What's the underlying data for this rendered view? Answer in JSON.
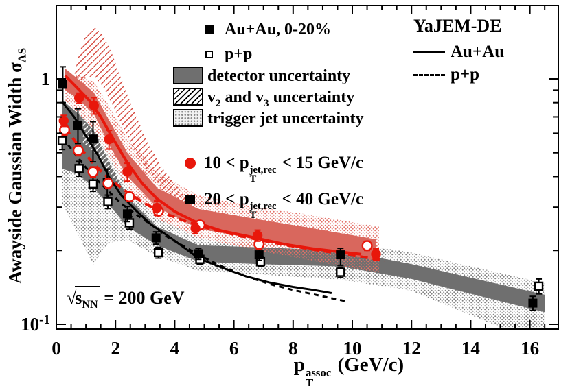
{
  "labels": {
    "y_axis": {
      "text": "Awayside Gaussian Width ",
      "sigma": "σ",
      "sigma_sub": "AS"
    },
    "x_axis": {
      "p": "p",
      "sub": "T",
      "sup": "assoc",
      "units": " (GeV/c)"
    },
    "annotation": {
      "sqrt": "√",
      "s": "s",
      "sub": "NN",
      "eq": " = 200 GeV"
    }
  },
  "legend_data": {
    "items": [
      {
        "marker": "square-filled",
        "label": "Au+Au, 0-20%"
      },
      {
        "marker": "square-open",
        "label": "p+p"
      },
      {
        "marker": "box-gray",
        "label": "detector uncertainty"
      },
      {
        "marker": "box-hatch",
        "label_pre": "v",
        "label_sub1": "2",
        "label_mid": " and v",
        "label_sub2": "3",
        "label_post": " uncertainty"
      },
      {
        "marker": "box-dots",
        "label": "trigger jet uncertainty"
      }
    ]
  },
  "legend_jet": {
    "items": [
      {
        "marker": "red-circle",
        "pre": "10 < p",
        "sub": "T",
        "sup": "jet,rec",
        "post": " < 15 GeV/c"
      },
      {
        "marker": "black-square",
        "pre": "20 < p",
        "sub": "T",
        "sup": "jet,rec",
        "post": " < 40 GeV/c"
      }
    ]
  },
  "legend_model": {
    "title": "YaJEM-DE",
    "items": [
      {
        "line": "solid",
        "label": "Au+Au"
      },
      {
        "line": "dashed",
        "label": "p+p"
      }
    ]
  },
  "chart_data": {
    "type": "scatter",
    "title": "Awayside Gaussian Width vs associated pT",
    "x_axis": {
      "label": "pT assoc (GeV/c)",
      "min": 0,
      "max": 16.96,
      "tick_labels": [
        0,
        2,
        4,
        6,
        8,
        10,
        12,
        14,
        16
      ],
      "minor_step": 0.5
    },
    "y_axis": {
      "label": "Awayside Gaussian Width sigma_AS",
      "scale": "log",
      "min": 0.0956,
      "max": 1.99,
      "tick_labels": [
        {
          "v": 1,
          "text": "1"
        },
        {
          "v": 0.1,
          "text": "10",
          "sup": "-1"
        }
      ],
      "minor_ticks": [
        0.9,
        0.8,
        0.7,
        0.6,
        0.5,
        0.4,
        0.3,
        0.2
      ]
    },
    "annotation": "sqrt(s_NN) = 200 GeV",
    "style": {
      "red": "#e8170b",
      "red_band": "#d9675d",
      "red_light": "#e37168",
      "red_hatch": "#d6493f",
      "gray_band": "#6f6f6f",
      "gray_dot": "#828282",
      "black": "#000000"
    },
    "bands": [
      {
        "id": "trigger-jet-uncertainty-20-40",
        "fill": "gray-dots",
        "x": [
          0.2,
          0.75,
          1.25,
          1.75,
          2.4,
          3.4,
          4.8,
          6.8,
          9.6,
          12.0,
          16.5
        ],
        "upper": [
          0.68,
          0.74,
          0.64,
          0.52,
          0.37,
          0.275,
          0.23,
          0.226,
          0.218,
          0.196,
          0.147
        ],
        "lower": [
          0.31,
          0.23,
          0.175,
          0.215,
          0.22,
          0.19,
          0.165,
          0.16,
          0.152,
          0.137,
          0.082
        ]
      },
      {
        "id": "detector-uncertainty-20-40",
        "fill": "gray-solid",
        "x": [
          0.2,
          0.75,
          1.25,
          1.75,
          2.4,
          3.4,
          4.8,
          6.8,
          9.6,
          12.0,
          16.5
        ],
        "upper": [
          0.82,
          0.72,
          0.62,
          0.47,
          0.33,
          0.25,
          0.21,
          0.206,
          0.2,
          0.176,
          0.132
        ],
        "lower": [
          0.43,
          0.41,
          0.36,
          0.31,
          0.25,
          0.21,
          0.18,
          0.176,
          0.172,
          0.153,
          0.112
        ]
      },
      {
        "id": "v2-v3-uncertainty-20-40",
        "fill": "white-hatch",
        "x": [
          0.9,
          1.3,
          1.7,
          2.2
        ],
        "upper": [
          0.68,
          0.6,
          0.5,
          0.4
        ],
        "lower": [
          0.55,
          0.5,
          0.43,
          0.36
        ]
      },
      {
        "id": "trigger-jet-uncertainty-10-15",
        "fill": "red-dots",
        "x": [
          0.3,
          0.77,
          1.27,
          1.78,
          2.4,
          3.4,
          4.8,
          6.8,
          8.5,
          10.9
        ],
        "upper": [
          1.02,
          1.04,
          0.97,
          0.78,
          0.575,
          0.415,
          0.335,
          0.3,
          0.28,
          0.25
        ],
        "lower": [
          0.82,
          0.72,
          0.62,
          0.48,
          0.36,
          0.27,
          0.225,
          0.2,
          0.183,
          0.162
        ]
      },
      {
        "id": "v2-v3-uncertainty-10-15",
        "fill": "red-hatch",
        "x": [
          0.55,
          0.75,
          1.0,
          1.3,
          1.6,
          1.9,
          2.2,
          2.6,
          3.1,
          3.6,
          4.2,
          4.6
        ],
        "upper": [
          0.95,
          1.25,
          1.52,
          1.62,
          1.5,
          1.25,
          1.0,
          0.75,
          0.55,
          0.43,
          0.35,
          0.3
        ],
        "lower": [
          0.85,
          0.95,
          1.02,
          1.02,
          0.92,
          0.78,
          0.65,
          0.52,
          0.42,
          0.35,
          0.3,
          0.27
        ]
      },
      {
        "id": "detector-uncertainty-10-15",
        "fill": "red-solid",
        "x": [
          0.3,
          0.77,
          1.27,
          1.78,
          2.4,
          3.4,
          4.8,
          6.8,
          8.5,
          10.8
        ],
        "upper": [
          1.1,
          0.99,
          0.88,
          0.68,
          0.5,
          0.36,
          0.295,
          0.268,
          0.248,
          0.222
        ],
        "lower": [
          0.9,
          0.82,
          0.72,
          0.54,
          0.4,
          0.3,
          0.245,
          0.222,
          0.205,
          0.182
        ]
      }
    ],
    "model_curves": [
      {
        "id": "yajem-auau-10-15",
        "color": "red",
        "style": "solid",
        "x": [
          0.3,
          0.7,
          1.1,
          1.5,
          1.9,
          2.4,
          2.9,
          3.4,
          4.0,
          4.8,
          5.6,
          6.8,
          7.7,
          8.7,
          10.3
        ],
        "y": [
          1.03,
          0.92,
          0.82,
          0.7,
          0.575,
          0.455,
          0.375,
          0.325,
          0.288,
          0.258,
          0.24,
          0.224,
          0.212,
          0.203,
          0.193
        ]
      },
      {
        "id": "yajem-pp-10-15",
        "color": "red",
        "style": "dashed",
        "x": [
          0.3,
          0.8,
          1.3,
          1.8,
          2.4,
          3.0,
          3.6,
          4.4,
          5.2,
          6.0,
          7.0,
          8.0,
          9.0,
          10.0,
          11.1
        ],
        "y": [
          0.63,
          0.525,
          0.445,
          0.39,
          0.345,
          0.31,
          0.285,
          0.262,
          0.245,
          0.232,
          0.219,
          0.208,
          0.199,
          0.191,
          0.182
        ]
      },
      {
        "id": "yajem-auau-20-40",
        "color": "black",
        "style": "solid",
        "x": [
          0.22,
          0.6,
          1.0,
          1.4,
          1.8,
          2.2,
          2.7,
          3.2,
          3.8,
          4.4,
          4.8,
          5.6,
          6.4,
          7.2,
          8.0,
          8.7,
          9.3
        ],
        "y": [
          0.8,
          0.7,
          0.585,
          0.49,
          0.395,
          0.335,
          0.29,
          0.255,
          0.228,
          0.202,
          0.186,
          0.17,
          0.157,
          0.148,
          0.142,
          0.138,
          0.134
        ]
      },
      {
        "id": "yajem-pp-20-40",
        "color": "black",
        "style": "dashed",
        "x": [
          0.22,
          0.6,
          1.0,
          1.4,
          1.8,
          2.2,
          2.7,
          3.2,
          3.8,
          4.4,
          4.8,
          5.6,
          6.4,
          7.2,
          8.0,
          9.0,
          9.8
        ],
        "y": [
          0.575,
          0.5,
          0.435,
          0.385,
          0.345,
          0.31,
          0.28,
          0.255,
          0.225,
          0.205,
          0.192,
          0.172,
          0.157,
          0.146,
          0.138,
          0.13,
          0.124
        ]
      }
    ],
    "series": [
      {
        "id": "pp-20-40",
        "label": "p+p, 20 < pT jet,rec < 40 GeV/c",
        "marker": "square-open",
        "color": "black",
        "x": [
          0.2,
          0.77,
          1.24,
          1.74,
          2.47,
          3.45,
          4.85,
          6.9,
          9.6,
          16.3
        ],
        "y": [
          0.56,
          0.431,
          0.373,
          0.316,
          0.259,
          0.196,
          0.184,
          0.18,
          0.163,
          0.143
        ],
        "yerr": [
          0.045,
          0.03,
          0.025,
          0.02,
          0.015,
          0.01,
          0.008,
          0.008,
          0.008,
          0.01
        ]
      },
      {
        "id": "auau-20-40",
        "label": "Au+Au 0-20%, 20 < pT jet,rec < 40 GeV/c",
        "marker": "square-filled",
        "color": "black",
        "x": [
          0.22,
          0.73,
          1.24,
          1.72,
          2.4,
          3.37,
          4.8,
          6.85,
          9.6,
          16.1
        ],
        "y": [
          0.95,
          0.645,
          0.569,
          0.379,
          0.282,
          0.225,
          0.194,
          0.192,
          0.192,
          0.122
        ],
        "yerr_lo": [
          0.15,
          0.1,
          0.11,
          0.05,
          0.02,
          0.013,
          0.01,
          0.01,
          0.018,
          0.008
        ],
        "yerr_hi": [
          0.17,
          0.11,
          0.1,
          0.05,
          0.02,
          0.013,
          0.01,
          0.01,
          0.012,
          0.008
        ]
      },
      {
        "id": "pp-10-15",
        "label": "p+p, 10 < pT jet,rec < 15 GeV/c",
        "marker": "circle-open",
        "color": "red",
        "x": [
          0.28,
          0.74,
          1.24,
          1.75,
          2.47,
          3.45,
          4.85,
          6.85,
          10.5
        ],
        "y": [
          0.62,
          0.511,
          0.418,
          0.375,
          0.331,
          0.289,
          0.254,
          0.212,
          0.209
        ],
        "yerr": [
          0.03,
          0.025,
          0.02,
          0.018,
          0.014,
          0.012,
          0.01,
          0.009,
          0.009
        ]
      },
      {
        "id": "auau-10-15",
        "label": "Au+Au 0-20%, 10 < pT jet,rec < 15 GeV/c",
        "marker": "circle-filled",
        "color": "red",
        "x": [
          0.25,
          0.77,
          1.27,
          1.78,
          2.4,
          3.4,
          4.7,
          6.8,
          10.8
        ],
        "y": [
          0.675,
          0.835,
          0.778,
          0.567,
          0.418,
          0.298,
          0.246,
          0.23,
          0.193
        ],
        "yerr": [
          0.035,
          0.04,
          0.06,
          0.05,
          0.035,
          0.02,
          0.012,
          0.012,
          0.01
        ]
      }
    ]
  }
}
